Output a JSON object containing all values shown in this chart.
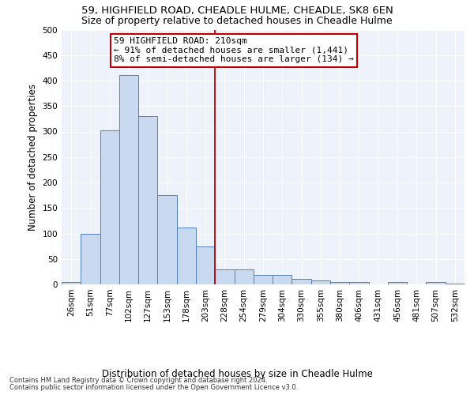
{
  "title": "59, HIGHFIELD ROAD, CHEADLE HULME, CHEADLE, SK8 6EN",
  "subtitle": "Size of property relative to detached houses in Cheadle Hulme",
  "xlabel": "Distribution of detached houses by size in Cheadle Hulme",
  "ylabel": "Number of detached properties",
  "categories": [
    "26sqm",
    "51sqm",
    "77sqm",
    "102sqm",
    "127sqm",
    "153sqm",
    "178sqm",
    "203sqm",
    "228sqm",
    "254sqm",
    "279sqm",
    "304sqm",
    "330sqm",
    "355sqm",
    "380sqm",
    "406sqm",
    "431sqm",
    "456sqm",
    "481sqm",
    "507sqm",
    "532sqm"
  ],
  "values": [
    5,
    100,
    302,
    411,
    330,
    175,
    111,
    74,
    30,
    30,
    18,
    18,
    11,
    7,
    4,
    4,
    0,
    5,
    0,
    5,
    2
  ],
  "bar_color": "#c9d9f0",
  "bar_edge_color": "#5080c0",
  "vline_color": "#c00000",
  "vline_index": 7.5,
  "annotation_line1": "59 HIGHFIELD ROAD: 210sqm",
  "annotation_line2": "← 91% of detached houses are smaller (1,441)",
  "annotation_line3": "8% of semi-detached houses are larger (134) →",
  "annotation_box_edgecolor": "#c00000",
  "annotation_bg": "white",
  "footer_line1": "Contains HM Land Registry data © Crown copyright and database right 2024.",
  "footer_line2": "Contains public sector information licensed under the Open Government Licence v3.0.",
  "title_fontsize": 9.5,
  "subtitle_fontsize": 9,
  "xlabel_fontsize": 8.5,
  "ylabel_fontsize": 8.5,
  "tick_fontsize": 7.5,
  "footer_fontsize": 6.0,
  "ylim": [
    0,
    500
  ],
  "yticks": [
    0,
    50,
    100,
    150,
    200,
    250,
    300,
    350,
    400,
    450,
    500
  ],
  "bg_color": "#eef2fb",
  "grid_color": "#ffffff"
}
